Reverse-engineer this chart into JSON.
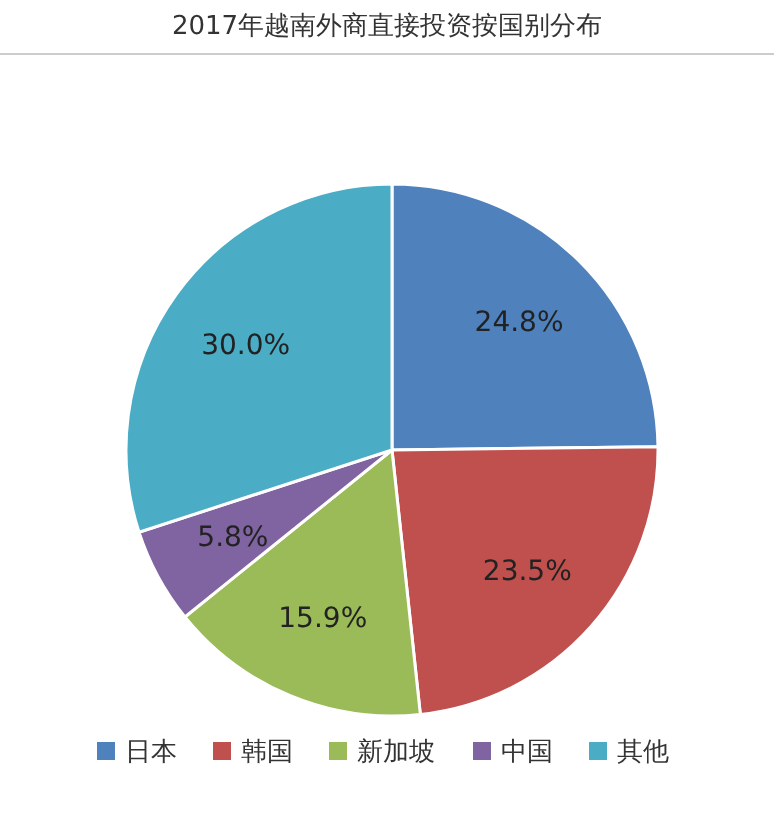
{
  "chart_data": {
    "type": "pie",
    "title": "2017年越南外商直接投资按国别分布",
    "categories": [
      "日本",
      "韩国",
      "新加坡",
      "中国",
      "其他"
    ],
    "values": [
      24.8,
      23.5,
      15.9,
      5.8,
      30.0
    ],
    "colors": [
      "#4f81bd",
      "#c0504d",
      "#9bbb59",
      "#8064a2",
      "#4bacc6"
    ],
    "value_labels": [
      "24.8%",
      "23.5%",
      "15.9%",
      "5.8%",
      "30.0%"
    ],
    "legend": "bottom"
  }
}
